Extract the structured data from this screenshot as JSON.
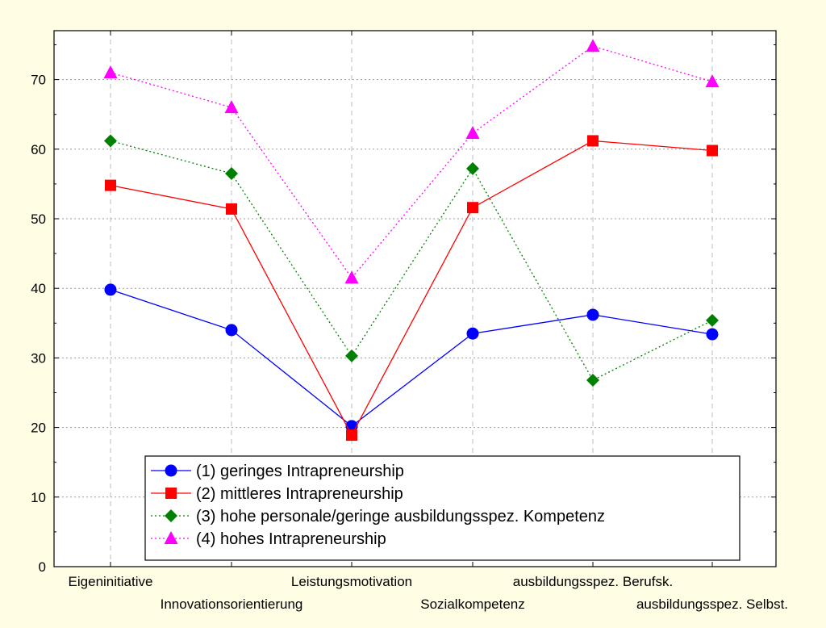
{
  "chart_data": {
    "type": "line",
    "categories": [
      "Eigeninitiative",
      "Innovationsorientierung",
      "Leistungsmotivation",
      "Sozialkompetenz",
      "ausbildungsspez. Berufsk.",
      "ausbildungsspez. Selbst."
    ],
    "ylim": [
      0,
      77
    ],
    "yticks": [
      0,
      10,
      20,
      30,
      40,
      50,
      60,
      70
    ],
    "grid": true,
    "legend_position": "bottom-center",
    "series": [
      {
        "name": "(1) geringes Intrapreneurship",
        "values": [
          39.8,
          34.0,
          20.2,
          33.5,
          36.2,
          33.4
        ],
        "color": "#0000ff",
        "marker": "circle",
        "dash": ""
      },
      {
        "name": "(2) mittleres Intrapreneurship",
        "values": [
          54.8,
          51.4,
          18.9,
          51.6,
          61.2,
          59.8
        ],
        "color": "#ff0000",
        "marker": "square",
        "dash": ""
      },
      {
        "name": "(3) hohe personale/geringe ausbildungsspez. Kompetenz",
        "values": [
          61.2,
          56.5,
          30.3,
          57.2,
          26.8,
          35.4
        ],
        "color": "#008000",
        "marker": "diamond",
        "dash": "2,3"
      },
      {
        "name": "(4) hohes Intrapreneurship",
        "values": [
          71.0,
          66.0,
          41.5,
          62.3,
          74.8,
          69.7
        ],
        "color": "#ff00ff",
        "marker": "triangle",
        "dash": "2,3"
      }
    ]
  }
}
